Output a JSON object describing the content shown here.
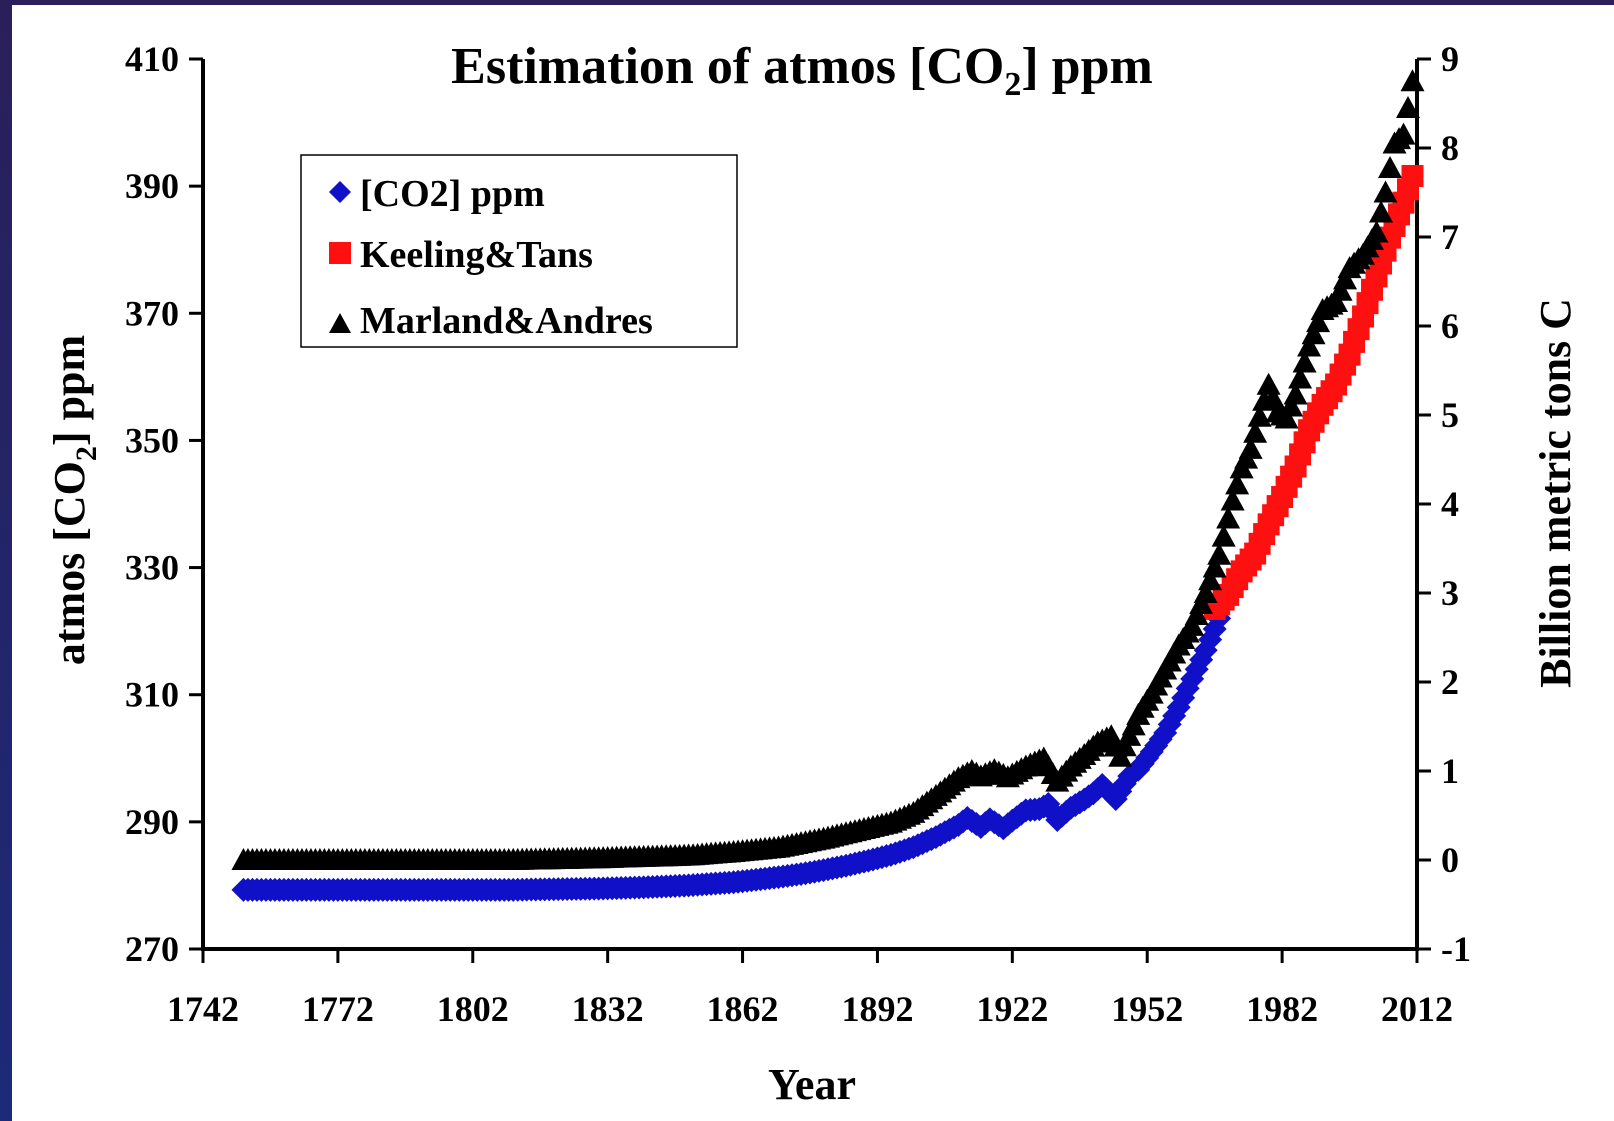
{
  "chart_data": {
    "type": "scatter",
    "title_main": "Estimation of atmos [CO",
    "title_sub": "2",
    "title_tail": "] ppm",
    "xlabel": "Year",
    "ylabel_main": "atmos [CO",
    "ylabel_sub": "2",
    "ylabel_tail": "] ppm",
    "y2label": "Billion metric tons C",
    "xlim": [
      1742,
      2012
    ],
    "ylim": [
      270,
      410
    ],
    "y2lim": [
      -1,
      9
    ],
    "x_ticks": [
      "1742",
      "1772",
      "1802",
      "1832",
      "1862",
      "1892",
      "1922",
      "1952",
      "1982",
      "2012"
    ],
    "y_ticks": [
      "270",
      "290",
      "310",
      "330",
      "350",
      "370",
      "390",
      "410"
    ],
    "y2_ticks": [
      "-1",
      "0",
      "1",
      "2",
      "3",
      "4",
      "5",
      "6",
      "7",
      "8",
      "9"
    ],
    "legend_position": "top-left",
    "series": [
      {
        "name": "[CO2] ppm",
        "axis": "left",
        "marker": "diamond",
        "color": "#1010c8",
        "x": [
          1751,
          1760,
          1770,
          1780,
          1790,
          1800,
          1810,
          1820,
          1830,
          1840,
          1850,
          1860,
          1865,
          1870,
          1875,
          1880,
          1885,
          1890,
          1895,
          1900,
          1905,
          1910,
          1912,
          1915,
          1917,
          1920,
          1922,
          1925,
          1928,
          1930,
          1932,
          1935,
          1938,
          1940,
          1942,
          1945,
          1948,
          1950,
          1953,
          1956,
          1959,
          1962,
          1965,
          1968
        ],
        "y": [
          279.3,
          279.3,
          279.3,
          279.3,
          279.3,
          279.3,
          279.3,
          279.4,
          279.5,
          279.7,
          280.0,
          280.5,
          280.9,
          281.3,
          281.8,
          282.4,
          283.1,
          283.9,
          284.8,
          286.0,
          287.6,
          289.5,
          290.6,
          289.2,
          290.4,
          289.0,
          290.2,
          291.8,
          292.0,
          292.8,
          290.3,
          292.2,
          293.5,
          294.5,
          295.8,
          293.6,
          297.2,
          298.2,
          301.0,
          304.0,
          308.0,
          312.5,
          317.0,
          322.0
        ]
      },
      {
        "name": "Keeling&Tans",
        "axis": "left",
        "marker": "square",
        "color": "#ff1010",
        "x": [
          1967,
          1970,
          1973,
          1976,
          1979,
          1982,
          1985,
          1988,
          1991,
          1994,
          1997,
          2000,
          2003,
          2006,
          2009,
          2011
        ],
        "y": [
          323.5,
          325.7,
          329.4,
          332.2,
          336.8,
          341.1,
          345.9,
          351.6,
          355.6,
          358.8,
          363.5,
          369.5,
          375.8,
          381.9,
          387.4,
          391.6
        ]
      },
      {
        "name": "Marland&Andres",
        "axis": "right",
        "marker": "triangle",
        "color": "#000000",
        "x": [
          1751,
          1770,
          1790,
          1810,
          1830,
          1850,
          1860,
          1870,
          1880,
          1890,
          1895,
          1900,
          1905,
          1910,
          1913,
          1915,
          1918,
          1921,
          1925,
          1929,
          1932,
          1935,
          1938,
          1941,
          1944,
          1946,
          1950,
          1953,
          1956,
          1959,
          1962,
          1965,
          1968,
          1971,
          1973,
          1975,
          1979,
          1981,
          1983,
          1985,
          1988,
          1991,
          1994,
          1997,
          2000,
          2003,
          2005,
          2007,
          2009,
          2011
        ],
        "y": [
          0.0,
          0.0,
          0.0,
          0.0,
          0.02,
          0.05,
          0.09,
          0.14,
          0.24,
          0.36,
          0.42,
          0.53,
          0.72,
          0.92,
          1.0,
          0.94,
          1.01,
          0.93,
          1.05,
          1.14,
          0.88,
          1.05,
          1.18,
          1.32,
          1.39,
          1.16,
          1.63,
          1.87,
          2.14,
          2.41,
          2.63,
          3.0,
          3.43,
          4.04,
          4.4,
          4.62,
          5.34,
          5.03,
          4.96,
          5.23,
          5.77,
          6.18,
          6.27,
          6.65,
          6.8,
          7.05,
          7.5,
          8.05,
          8.15,
          8.75
        ]
      }
    ]
  }
}
